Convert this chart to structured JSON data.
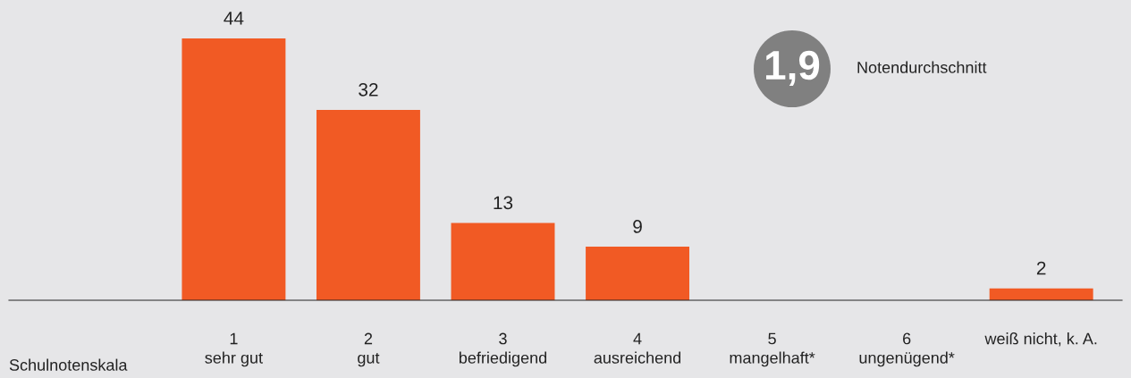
{
  "chart_data": {
    "type": "bar",
    "categories": [
      "1\nsehr gut",
      "2\ngut",
      "3\nbefriedigend",
      "4\nausreichend",
      "5\nmangelhaft*",
      "6\nungenügend*",
      "weiß nicht, k. A."
    ],
    "values": [
      44,
      32,
      13,
      9,
      null,
      null,
      2
    ],
    "value_labels": [
      "44",
      "32",
      "13",
      "9",
      null,
      null,
      "2"
    ],
    "color": "#f15a24",
    "grid": false,
    "tick_labels": "x",
    "annotations": [
      "Schulnotenskala",
      "1,9",
      "Notendurchschnitt"
    ]
  }
}
